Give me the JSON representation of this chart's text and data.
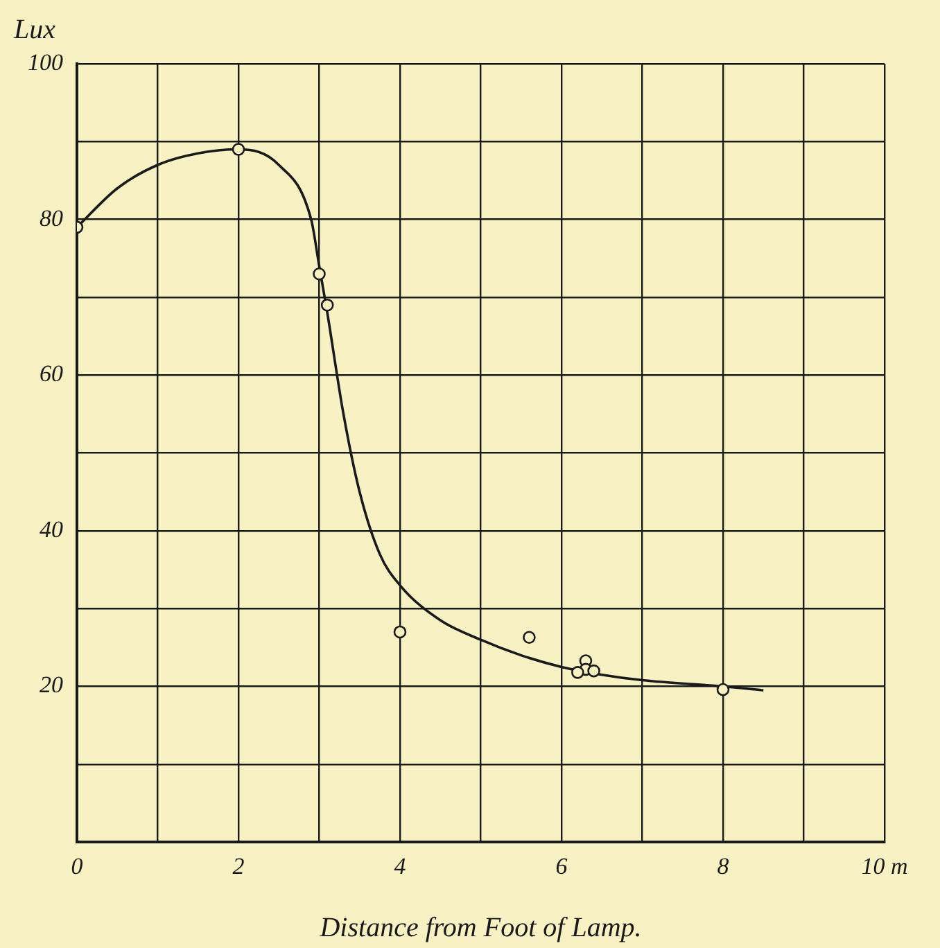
{
  "chart_data": {
    "type": "scatter",
    "xlabel": "Distance from Foot of Lamp.",
    "ylabel": "Lux",
    "xlim": [
      0,
      10
    ],
    "ylim": [
      0,
      100
    ],
    "xticks": [
      0,
      {
        "value": 1,
        "label": null
      },
      2,
      {
        "value": 3,
        "label": null
      },
      4,
      {
        "value": 5,
        "label": null
      },
      6,
      {
        "value": 7,
        "label": null
      },
      8,
      {
        "value": 9,
        "label": null
      },
      {
        "value": 10,
        "label": "10 m"
      }
    ],
    "yticks": [
      {
        "value": 0,
        "label": null
      },
      {
        "value": 10,
        "label": null
      },
      20,
      {
        "value": 30,
        "label": null
      },
      40,
      {
        "value": 50,
        "label": null
      },
      60,
      {
        "value": 70,
        "label": null
      },
      80,
      {
        "value": 90,
        "label": null
      },
      100
    ],
    "grid": true,
    "series": [
      {
        "type": "line",
        "marker": "none",
        "color": "#1a1a1a",
        "x": [
          0,
          0.5,
          1,
          1.5,
          2,
          2.5,
          2.9,
          3,
          3.1,
          3.3,
          3.5,
          3.75,
          4,
          4.5,
          5,
          5.5,
          6,
          6.5,
          7,
          8,
          8.5
        ],
        "values": [
          79,
          84,
          87,
          88.5,
          89,
          87,
          80,
          74,
          68,
          55,
          45,
          37,
          33,
          28.5,
          26,
          24,
          22.5,
          21.5,
          20.8,
          20,
          19.5
        ]
      },
      {
        "type": "scatter",
        "marker": "circle",
        "color": "#1a1a1a",
        "x": [
          0,
          2,
          3,
          3.1,
          4,
          5.6,
          6.3,
          6.3,
          6.2,
          6.4,
          8
        ],
        "values": [
          79,
          89,
          73,
          69,
          27,
          26.3,
          23.3,
          22.2,
          21.8,
          22,
          19.6
        ]
      }
    ]
  }
}
